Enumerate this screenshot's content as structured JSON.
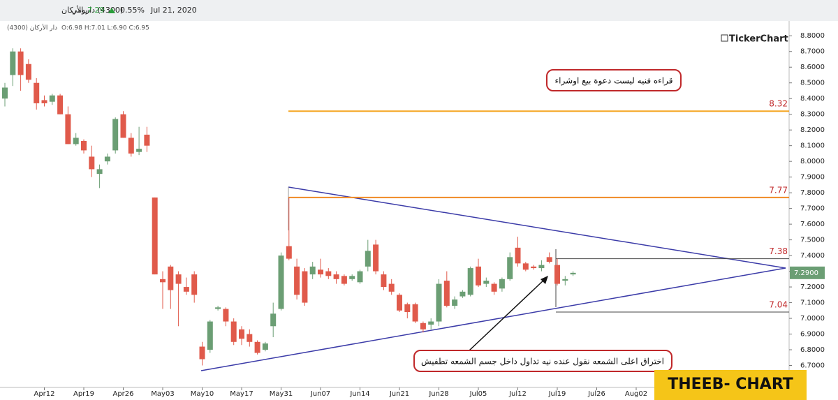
{
  "header": {
    "symbol": "(4300) دار الأركان",
    "period": "يومي",
    "price": "7.29",
    "change": "0.55%",
    "date": "Jul 21, 2020",
    "ohlc_name": "دار الأركان (4300)",
    "ohlc": "O:6.98 H:7.01 L:6.90 C:6.95",
    "brand": "TickerChart"
  },
  "annotations": {
    "disclaimer": "قراءه فنيه ليست دعوة بيع اوشراء",
    "note": "اختراق اعلى الشمعه نقول عنده نيه تداول داخل جسم الشمعه تطفيش",
    "watermark": "THEEB- CHART"
  },
  "chart_data": {
    "type": "candlestick",
    "categories": [
      null,
      null,
      null,
      null,
      null,
      "Apr12",
      null,
      null,
      null,
      null,
      "Apr19",
      null,
      null,
      null,
      null,
      "Apr26",
      null,
      null,
      null,
      null,
      "May03",
      null,
      null,
      null,
      null,
      "May10",
      null,
      null,
      null,
      null,
      "May17",
      null,
      null,
      null,
      null,
      "May31",
      null,
      null,
      null,
      null,
      "Jun07",
      null,
      null,
      null,
      null,
      "Jun14",
      null,
      null,
      null,
      null,
      "Jun21",
      null,
      null,
      null,
      null,
      "Jun28",
      null,
      null,
      null,
      null,
      "Jul05",
      null,
      null,
      null,
      null,
      "Jul12",
      null,
      null,
      null,
      null,
      "Jul19",
      null,
      null,
      null,
      null,
      "Jul26",
      null,
      null,
      null,
      null,
      "Aug02"
    ],
    "open": [
      8.4,
      8.55,
      8.7,
      8.62,
      8.5,
      8.39,
      8.38,
      8.42,
      8.3,
      8.11,
      8.13,
      8.03,
      7.92,
      8.0,
      8.07,
      8.3,
      8.15,
      8.06,
      8.17,
      7.77,
      7.25,
      7.33,
      7.28,
      7.2,
      7.28,
      6.82,
      6.8,
      7.06,
      7.06,
      6.98,
      6.93,
      6.9,
      6.85,
      6.8,
      6.95,
      7.06,
      7.46,
      7.33,
      7.3,
      7.28,
      7.31,
      7.3,
      7.28,
      7.27,
      7.25,
      7.23,
      7.33,
      7.47,
      7.28,
      7.22,
      7.15,
      7.09,
      7.09,
      6.97,
      6.96,
      6.98,
      7.24,
      7.08,
      7.14,
      7.15,
      7.33,
      7.22,
      7.22,
      7.19,
      7.25,
      7.45,
      7.35,
      7.33,
      7.32,
      7.39,
      7.34,
      7.24,
      7.28,
      null,
      null,
      null,
      null,
      null,
      null,
      null,
      null
    ],
    "high": [
      8.5,
      8.72,
      8.72,
      8.65,
      8.53,
      8.42,
      8.43,
      8.43,
      8.35,
      8.18,
      8.14,
      8.1,
      7.98,
      8.05,
      8.28,
      8.32,
      8.18,
      8.22,
      8.22,
      7.77,
      7.3,
      7.34,
      7.3,
      7.26,
      7.3,
      6.85,
      6.99,
      7.08,
      7.07,
      7.0,
      6.95,
      6.93,
      6.86,
      6.85,
      7.1,
      7.42,
      7.77,
      7.38,
      7.32,
      7.36,
      7.38,
      7.32,
      7.3,
      7.28,
      7.28,
      7.31,
      7.5,
      7.5,
      7.3,
      7.25,
      7.16,
      7.1,
      7.1,
      6.98,
      7.0,
      7.25,
      7.3,
      7.14,
      7.18,
      7.33,
      7.38,
      7.26,
      7.23,
      7.26,
      7.42,
      7.52,
      7.36,
      7.34,
      7.37,
      7.42,
      7.38,
      7.27,
      7.3,
      null,
      null,
      null,
      null,
      null,
      null,
      null,
      null
    ],
    "low": [
      8.35,
      8.48,
      8.45,
      8.5,
      8.33,
      8.35,
      8.36,
      8.3,
      8.11,
      8.1,
      8.05,
      7.9,
      7.83,
      7.98,
      8.05,
      8.15,
      8.03,
      8.04,
      8.06,
      7.28,
      7.06,
      7.06,
      6.95,
      7.15,
      7.1,
      6.7,
      6.78,
      7.05,
      6.95,
      6.83,
      6.83,
      6.82,
      6.77,
      6.79,
      6.88,
      7.05,
      7.37,
      7.12,
      7.08,
      7.25,
      7.26,
      7.25,
      7.22,
      7.21,
      7.24,
      7.22,
      7.3,
      7.28,
      7.18,
      7.15,
      7.04,
      7.0,
      6.97,
      6.91,
      6.93,
      6.95,
      7.07,
      7.06,
      7.13,
      7.14,
      7.2,
      7.2,
      7.15,
      7.17,
      7.24,
      7.33,
      7.3,
      7.31,
      7.3,
      7.35,
      7.21,
      7.21,
      7.27,
      null,
      null,
      null,
      null,
      null,
      null,
      null,
      null
    ],
    "close": [
      8.47,
      8.7,
      8.55,
      8.52,
      8.37,
      8.37,
      8.42,
      8.3,
      8.11,
      8.15,
      8.07,
      7.95,
      7.95,
      8.03,
      8.27,
      8.15,
      8.05,
      8.08,
      8.1,
      7.28,
      7.23,
      7.18,
      7.22,
      7.17,
      7.15,
      6.74,
      6.98,
      7.07,
      6.98,
      6.85,
      6.87,
      6.85,
      6.78,
      6.84,
      7.03,
      7.4,
      7.38,
      7.15,
      7.1,
      7.33,
      7.28,
      7.27,
      7.25,
      7.22,
      7.27,
      7.3,
      7.43,
      7.3,
      7.2,
      7.17,
      7.05,
      7.04,
      6.98,
      6.93,
      6.98,
      7.22,
      7.08,
      7.12,
      7.17,
      7.32,
      7.21,
      7.24,
      7.17,
      7.25,
      7.39,
      7.35,
      7.31,
      7.32,
      7.34,
      7.36,
      7.22,
      7.25,
      7.29,
      null,
      null,
      null,
      null,
      null,
      null,
      null,
      null
    ],
    "up_color": "#6b9e74",
    "down_color": "#e05a4b",
    "ylim": [
      6.56,
      8.85
    ],
    "yticks": [
      {
        "value": 6.7,
        "label": "6.7000"
      },
      {
        "value": 6.8,
        "label": "6.8000"
      },
      {
        "value": 6.9,
        "label": "6.9000"
      },
      {
        "value": 7.0,
        "label": "7.0000"
      },
      {
        "value": 7.1,
        "label": "7.1000"
      },
      {
        "value": 7.2,
        "label": "7.2000"
      },
      {
        "value": 7.3,
        "label": "7.3000"
      },
      {
        "value": 7.4,
        "label": "7.4000"
      },
      {
        "value": 7.5,
        "label": "7.5000"
      },
      {
        "value": 7.6,
        "label": "7.6000"
      },
      {
        "value": 7.7,
        "label": "7.7000"
      },
      {
        "value": 7.8,
        "label": "7.8000"
      },
      {
        "value": 7.9,
        "label": "7.9000"
      },
      {
        "value": 8.0,
        "label": "8.0000"
      },
      {
        "value": 8.1,
        "label": "8.1000"
      },
      {
        "value": 8.2,
        "label": "8.2000"
      },
      {
        "value": 8.3,
        "label": "8.3000"
      },
      {
        "value": 8.4,
        "label": "8.4000"
      },
      {
        "value": 8.5,
        "label": "8.5000"
      },
      {
        "value": 8.6,
        "label": "8.6000"
      },
      {
        "value": 8.7,
        "label": "8.7000"
      },
      {
        "value": 8.8,
        "label": "8.8000"
      }
    ],
    "last_price": {
      "value": 7.29,
      "label": "7.2900"
    },
    "levels": [
      {
        "value": 8.32,
        "color": "#f5a623"
      },
      {
        "value": 7.77,
        "color": "#f08a24"
      },
      {
        "value": 7.38,
        "color": "#444444"
      },
      {
        "value": 7.04,
        "color": "#444444"
      }
    ]
  }
}
